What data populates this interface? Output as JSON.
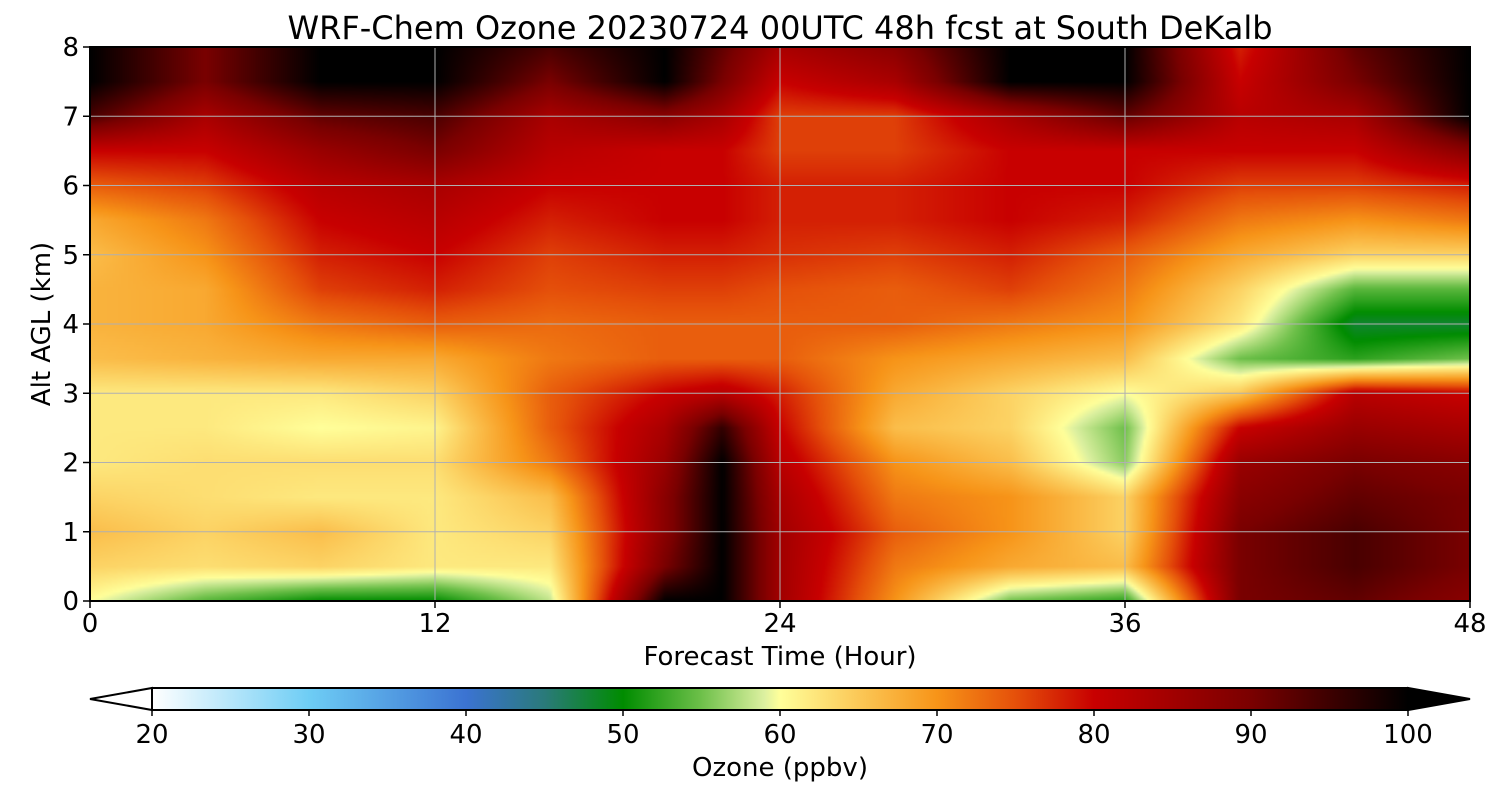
{
  "chart_data": {
    "type": "heatmap",
    "title": "WRF-Chem Ozone  20230724 00UTC 48h fcst at South DeKalb",
    "xlabel": "Forecast Time (Hour)",
    "ylabel": "Alt AGL (km)",
    "xlim": [
      0,
      48
    ],
    "ylim": [
      0,
      8
    ],
    "xticks": [
      "0",
      "12",
      "24",
      "36",
      "48"
    ],
    "yticks": [
      "0",
      "1",
      "2",
      "3",
      "4",
      "5",
      "6",
      "7",
      "8"
    ],
    "grid": true,
    "x_hours": [
      0,
      4,
      8,
      12,
      16,
      20,
      22,
      24,
      28,
      32,
      36,
      40,
      44,
      48
    ],
    "z_km": [
      0,
      0.5,
      1,
      1.5,
      2,
      2.5,
      3,
      3.5,
      4,
      4.5,
      5,
      5.5,
      6,
      6.5,
      7,
      7.5,
      8
    ],
    "ozone_ppbv": [
      [
        60,
        54,
        50,
        50,
        58,
        100,
        100,
        85,
        70,
        55,
        52,
        90,
        92,
        88
      ],
      [
        64,
        63,
        64,
        62,
        62,
        90,
        100,
        85,
        72,
        68,
        66,
        90,
        94,
        90
      ],
      [
        66,
        64,
        66,
        62,
        64,
        88,
        100,
        85,
        74,
        70,
        64,
        90,
        94,
        90
      ],
      [
        64,
        63,
        62,
        62,
        66,
        88,
        100,
        84,
        72,
        70,
        64,
        88,
        92,
        90
      ],
      [
        62,
        63,
        63,
        63,
        72,
        86,
        100,
        82,
        70,
        66,
        56,
        86,
        90,
        88
      ],
      [
        62,
        62,
        60,
        61,
        74,
        84,
        96,
        80,
        66,
        64,
        55,
        80,
        86,
        84
      ],
      [
        62,
        62,
        62,
        64,
        74,
        80,
        82,
        78,
        68,
        64,
        60,
        65,
        82,
        80
      ],
      [
        66,
        67,
        68,
        68,
        72,
        74,
        74,
        74,
        70,
        68,
        66,
        55,
        52,
        55
      ],
      [
        67,
        68,
        72,
        74,
        73,
        74,
        74,
        74,
        74,
        72,
        70,
        62,
        48,
        48
      ],
      [
        67,
        68,
        76,
        78,
        75,
        76,
        76,
        75,
        74,
        76,
        72,
        64,
        54,
        54
      ],
      [
        66,
        70,
        78,
        80,
        76,
        78,
        78,
        77,
        76,
        78,
        74,
        68,
        64,
        64
      ],
      [
        68,
        72,
        80,
        82,
        78,
        80,
        80,
        78,
        78,
        80,
        78,
        72,
        70,
        72
      ],
      [
        74,
        76,
        82,
        84,
        80,
        80,
        80,
        78,
        78,
        80,
        80,
        76,
        76,
        78
      ],
      [
        80,
        80,
        86,
        90,
        82,
        80,
        80,
        76,
        76,
        80,
        80,
        80,
        80,
        88
      ],
      [
        94,
        84,
        92,
        94,
        84,
        88,
        84,
        76,
        76,
        84,
        92,
        82,
        84,
        100
      ],
      [
        100,
        90,
        100,
        100,
        90,
        100,
        90,
        80,
        84,
        100,
        100,
        80,
        90,
        100
      ],
      [
        100,
        90,
        100,
        100,
        94,
        100,
        92,
        84,
        88,
        100,
        100,
        78,
        92,
        100
      ]
    ],
    "colorbar": {
      "label": "Ozone  (ppbv)",
      "min": 20,
      "max": 100,
      "extend": "both",
      "ticks": [
        "20",
        "30",
        "40",
        "50",
        "60",
        "70",
        "80",
        "90",
        "100"
      ],
      "stops": [
        [
          20,
          "#ffffff"
        ],
        [
          30,
          "#6ecdf5"
        ],
        [
          40,
          "#3b73d2"
        ],
        [
          45,
          "#2a7a7a"
        ],
        [
          50,
          "#008c00"
        ],
        [
          55,
          "#6ec04a"
        ],
        [
          59,
          "#dcf0a0"
        ],
        [
          60,
          "#ffff9a"
        ],
        [
          65,
          "#fbc857"
        ],
        [
          70,
          "#f79418"
        ],
        [
          75,
          "#e5500a"
        ],
        [
          80,
          "#c80000"
        ],
        [
          90,
          "#7a0000"
        ],
        [
          100,
          "#000000"
        ]
      ]
    }
  }
}
